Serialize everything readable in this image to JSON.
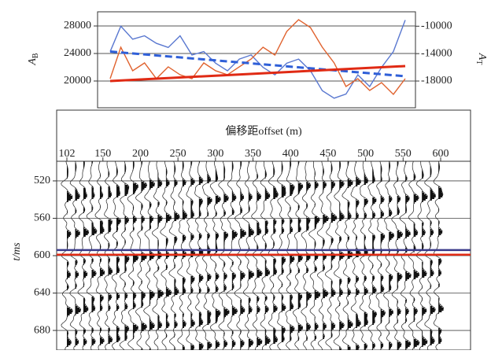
{
  "chart_data": [
    {
      "type": "line",
      "ylabel": "A",
      "ylabel_sub": "B",
      "y2label": "A",
      "y2label_sub": "T",
      "x": [
        102,
        120,
        140,
        160,
        180,
        200,
        220,
        240,
        260,
        280,
        300,
        320,
        340,
        360,
        380,
        400,
        420,
        440,
        460,
        480,
        500,
        520,
        540,
        560,
        580,
        600
      ],
      "xlim": [
        102,
        600
      ],
      "ylim": [
        16110,
        30060
      ],
      "yticks": [
        20000,
        24000,
        28000
      ],
      "y2lim": [
        -21900,
        -7900
      ],
      "y2ticks": [
        -18000,
        -14000,
        -10000
      ],
      "grid": true,
      "series": [
        {
          "color": "#5a78d0",
          "axis": "y2",
          "dash": false,
          "values": [
            -13700,
            -10000,
            -11900,
            -11400,
            -12500,
            -13100,
            -11400,
            -14200,
            -13700,
            -15400,
            -16500,
            -14800,
            -14200,
            -16000,
            -17100,
            -15400,
            -14800,
            -16500,
            -19400,
            -20500,
            -19900,
            -17100,
            -18800,
            -16000,
            -13700,
            -9100
          ]
        },
        {
          "color": "#e0622e",
          "axis": "y",
          "dash": false,
          "values": [
            20340,
            24910,
            21490,
            22630,
            20340,
            22060,
            20910,
            20340,
            22630,
            21490,
            20910,
            22060,
            23200,
            24910,
            23770,
            27200,
            28910,
            27770,
            24910,
            22630,
            19200,
            20340,
            18630,
            19770,
            18060,
            20340
          ]
        },
        {
          "color": "#2f5fd8",
          "axis": "y2",
          "dash": true,
          "x": [
            102,
            600
          ],
          "values": [
            -13700,
            -17300
          ]
        },
        {
          "color": "#e02a14",
          "axis": "y",
          "dash": false,
          "x": [
            102,
            600
          ],
          "values": [
            20000,
            22170
          ]
        }
      ]
    },
    {
      "type": "seismic",
      "xlabel": "偏移距offset (m)",
      "ylabel": "t/ms",
      "xlim": [
        102,
        600
      ],
      "xticks": [
        102,
        150,
        200,
        250,
        300,
        350,
        400,
        450,
        500,
        550,
        600
      ],
      "ylim": [
        701,
        499
      ],
      "yticks": [
        520,
        560,
        600,
        640,
        680
      ],
      "traces": [
        102,
        113,
        124,
        135,
        146,
        157,
        168,
        179,
        190,
        201,
        212,
        223,
        234,
        245,
        256,
        267,
        278,
        289,
        300,
        311,
        322,
        333,
        344,
        355,
        366,
        377,
        388,
        399,
        410,
        421,
        432,
        443,
        454,
        465,
        476,
        487,
        498,
        509,
        520,
        531,
        542,
        553,
        564,
        575,
        586,
        597
      ],
      "horizons": [
        {
          "value": 594,
          "color": "#3a3a8a"
        },
        {
          "value": 599,
          "color": "#e02a14"
        }
      ]
    }
  ]
}
